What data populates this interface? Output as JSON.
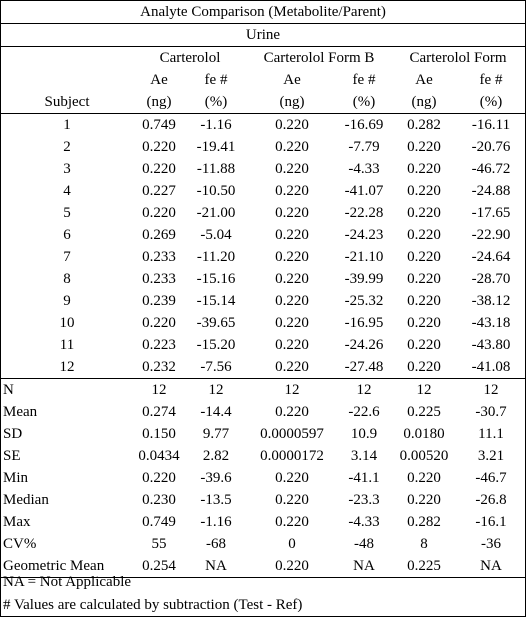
{
  "title": "Analyte Comparison (Metabolite/Parent)",
  "matrix": "Urine",
  "groups": [
    "Carterolol",
    "Carterolol Form B",
    "Carterolol Form"
  ],
  "subject_header": "Subject",
  "col_headers_row1": [
    "Ae",
    "fe #",
    "Ae",
    "fe #",
    "Ae",
    "fe #"
  ],
  "col_headers_row2": [
    "(ng)",
    "(%)",
    "(ng)",
    "(%)",
    "(ng)",
    "(%)"
  ],
  "rows": [
    [
      "1",
      "0.749",
      "-1.16",
      "0.220",
      "-16.69",
      "0.282",
      "-16.11"
    ],
    [
      "2",
      "0.220",
      "-19.41",
      "0.220",
      "-7.79",
      "0.220",
      "-20.76"
    ],
    [
      "3",
      "0.220",
      "-11.88",
      "0.220",
      "-4.33",
      "0.220",
      "-46.72"
    ],
    [
      "4",
      "0.227",
      "-10.50",
      "0.220",
      "-41.07",
      "0.220",
      "-24.88"
    ],
    [
      "5",
      "0.220",
      "-21.00",
      "0.220",
      "-22.28",
      "0.220",
      "-17.65"
    ],
    [
      "6",
      "0.269",
      "-5.04",
      "0.220",
      "-24.23",
      "0.220",
      "-22.90"
    ],
    [
      "7",
      "0.233",
      "-11.20",
      "0.220",
      "-21.10",
      "0.220",
      "-24.64"
    ],
    [
      "8",
      "0.233",
      "-15.16",
      "0.220",
      "-39.99",
      "0.220",
      "-28.70"
    ],
    [
      "9",
      "0.239",
      "-15.14",
      "0.220",
      "-25.32",
      "0.220",
      "-38.12"
    ],
    [
      "10",
      "0.220",
      "-39.65",
      "0.220",
      "-16.95",
      "0.220",
      "-43.18"
    ],
    [
      "11",
      "0.223",
      "-15.20",
      "0.220",
      "-24.26",
      "0.220",
      "-43.80"
    ],
    [
      "12",
      "0.232",
      "-7.56",
      "0.220",
      "-27.48",
      "0.220",
      "-41.08"
    ]
  ],
  "summary": [
    [
      "N",
      "12",
      "12",
      "12",
      "12",
      "12",
      "12"
    ],
    [
      "Mean",
      "0.274",
      "-14.4",
      "0.220",
      "-22.6",
      "0.225",
      "-30.7"
    ],
    [
      "SD",
      "0.150",
      "9.77",
      "0.0000597",
      "10.9",
      "0.0180",
      "11.1"
    ],
    [
      "SE",
      "0.0434",
      "2.82",
      "0.0000172",
      "3.14",
      "0.00520",
      "3.21"
    ],
    [
      "Min",
      "0.220",
      "-39.6",
      "0.220",
      "-41.1",
      "0.220",
      "-46.7"
    ],
    [
      "Median",
      "0.230",
      "-13.5",
      "0.220",
      "-23.3",
      "0.220",
      "-26.8"
    ],
    [
      "Max",
      "0.749",
      "-1.16",
      "0.220",
      "-4.33",
      "0.282",
      "-16.1"
    ],
    [
      "CV%",
      "55",
      "-68",
      "0",
      "-48",
      "8",
      "-36"
    ],
    [
      "Geometric Mean",
      "0.254",
      "NA",
      "0.220",
      "NA",
      "0.225",
      "NA"
    ]
  ],
  "footnotes": [
    "NA = Not Applicable",
    "# Values are calculated by subtraction (Test - Ref)"
  ]
}
